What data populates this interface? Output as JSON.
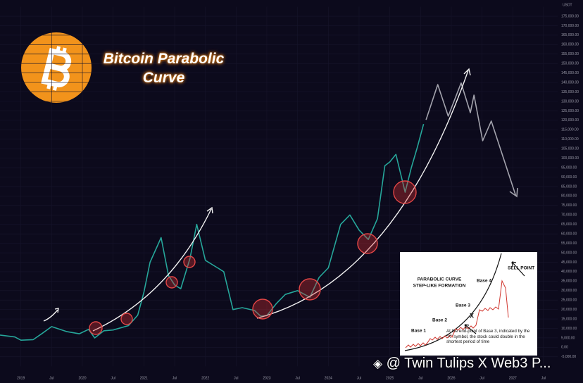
{
  "chart_data": {
    "type": "line",
    "title": "Bitcoin Parabolic Curve",
    "unit": "USDT",
    "series": [
      {
        "color": "#26a69a",
        "x": [
          2018.66,
          2018.9,
          2019.0,
          2019.2,
          2019.35,
          2019.5,
          2019.75,
          2019.95,
          2020.1,
          2020.2,
          2020.35,
          2020.5,
          2020.75,
          2020.9,
          2021.0,
          2021.1,
          2021.28,
          2021.4,
          2021.5,
          2021.6,
          2021.75,
          2021.86,
          2022.0,
          2022.2,
          2022.3,
          2022.45,
          2022.6,
          2022.8,
          2022.9,
          2023.0,
          2023.15,
          2023.3,
          2023.5,
          2023.7,
          2023.85,
          2024.0,
          2024.2,
          2024.35,
          2024.5,
          2024.65,
          2024.8,
          2024.92,
          2025.0,
          2025.1,
          2025.25,
          2025.35,
          2025.45,
          2025.55
        ],
        "values": [
          6500,
          5500,
          3800,
          4100,
          7500,
          11000,
          8300,
          7200,
          9500,
          5000,
          8800,
          9200,
          11500,
          17000,
          29000,
          45000,
          58000,
          38000,
          33000,
          31000,
          47000,
          65000,
          46000,
          42000,
          40000,
          20000,
          21000,
          19500,
          16500,
          16800,
          23000,
          28000,
          30000,
          26500,
          37000,
          42000,
          65000,
          70000,
          62000,
          57000,
          68000,
          96000,
          98000,
          102000,
          82000,
          95000,
          106000,
          118000
        ]
      },
      {
        "color": "#a3a3ad",
        "x": [
          2025.59,
          2025.78,
          2025.95,
          2026.16,
          2026.31,
          2026.37,
          2026.51,
          2026.65,
          2027.05
        ],
        "values": [
          120300,
          138900,
          122200,
          139700,
          124000,
          133300,
          109200,
          119600,
          80100
        ]
      }
    ],
    "xlim": [
      2018.66,
      2027.73
    ],
    "xticks": [
      2019,
      {
        "value": 2019.5,
        "label": "Jul"
      },
      2020,
      {
        "value": 2020.5,
        "label": "Jul"
      },
      2021,
      {
        "value": 2021.5,
        "label": "Jul"
      },
      2022,
      {
        "value": 2022.5,
        "label": "Jul"
      },
      2023,
      {
        "value": 2023.5,
        "label": "Jul"
      },
      2024,
      {
        "value": 2024.5,
        "label": "Jul"
      },
      2025,
      {
        "value": 2025.5,
        "label": "Jul"
      },
      2026,
      {
        "value": 2026.5,
        "label": "Jul"
      },
      2027,
      {
        "value": 2027.5,
        "label": "Jul"
      }
    ],
    "ylim": [
      -10000,
      180000
    ],
    "yticks": [
      {
        "value": 175000,
        "label": "175,000.00"
      },
      {
        "value": 170000,
        "label": "170,000.00"
      },
      {
        "value": 165000,
        "label": "165,000.00"
      },
      {
        "value": 160000,
        "label": "160,000.00"
      },
      {
        "value": 155000,
        "label": "155,000.00"
      },
      {
        "value": 150000,
        "label": "150,000.00"
      },
      {
        "value": 145000,
        "label": "145,000.00"
      },
      {
        "value": 140000,
        "label": "140,000.00"
      },
      {
        "value": 135000,
        "label": "135,000.00"
      },
      {
        "value": 130000,
        "label": "130,000.00"
      },
      {
        "value": 125000,
        "label": "125,000.00"
      },
      {
        "value": 120000,
        "label": "120,000.00"
      },
      {
        "value": 115000,
        "label": "115,000.00"
      },
      {
        "value": 110000,
        "label": "110,000.00"
      },
      {
        "value": 105000,
        "label": "105,000.00"
      },
      {
        "value": 100000,
        "label": "100,000.00"
      },
      {
        "value": 95000,
        "label": "95,000.00"
      },
      {
        "value": 90000,
        "label": "90,000.00"
      },
      {
        "value": 85000,
        "label": "85,000.00"
      },
      {
        "value": 80000,
        "label": "80,000.00"
      },
      {
        "value": 75000,
        "label": "75,000.00"
      },
      {
        "value": 70000,
        "label": "70,000.00"
      },
      {
        "value": 65000,
        "label": "65,000.00"
      },
      {
        "value": 60000,
        "label": "60,000.00"
      },
      {
        "value": 55000,
        "label": "55,000.00"
      },
      {
        "value": 50000,
        "label": "50,000.00"
      },
      {
        "value": 45000,
        "label": "45,000.00"
      },
      {
        "value": 40000,
        "label": "40,000.00"
      },
      {
        "value": 35000,
        "label": "35,000.00"
      },
      {
        "value": 30000,
        "label": "30,000.00"
      },
      {
        "value": 25000,
        "label": "25,000.00"
      },
      {
        "value": 20000,
        "label": "20,000.00"
      },
      {
        "value": 15000,
        "label": "15,000.00"
      },
      {
        "value": 10000,
        "label": "10,000.00"
      },
      {
        "value": 5000,
        "label": "5,000.00"
      },
      {
        "value": 0,
        "label": "0.00"
      },
      {
        "value": -5000,
        "label": "-5,000.00"
      }
    ],
    "grid": true
  },
  "inset": {
    "title_1": "PARABOLIC CURVE",
    "title_2": "STEP-LIKE FORMATION",
    "bases": [
      "Base 1",
      "Base 2",
      "Base 3",
      "Base 4"
    ],
    "sell": "SELL POINT",
    "marker": "X",
    "note": "At the end-point of Base 3, indicated by the \"X\" symbol, the stock could double in the shortest period of time"
  },
  "watermark": "@ Twin Tulips X Web3 P..."
}
